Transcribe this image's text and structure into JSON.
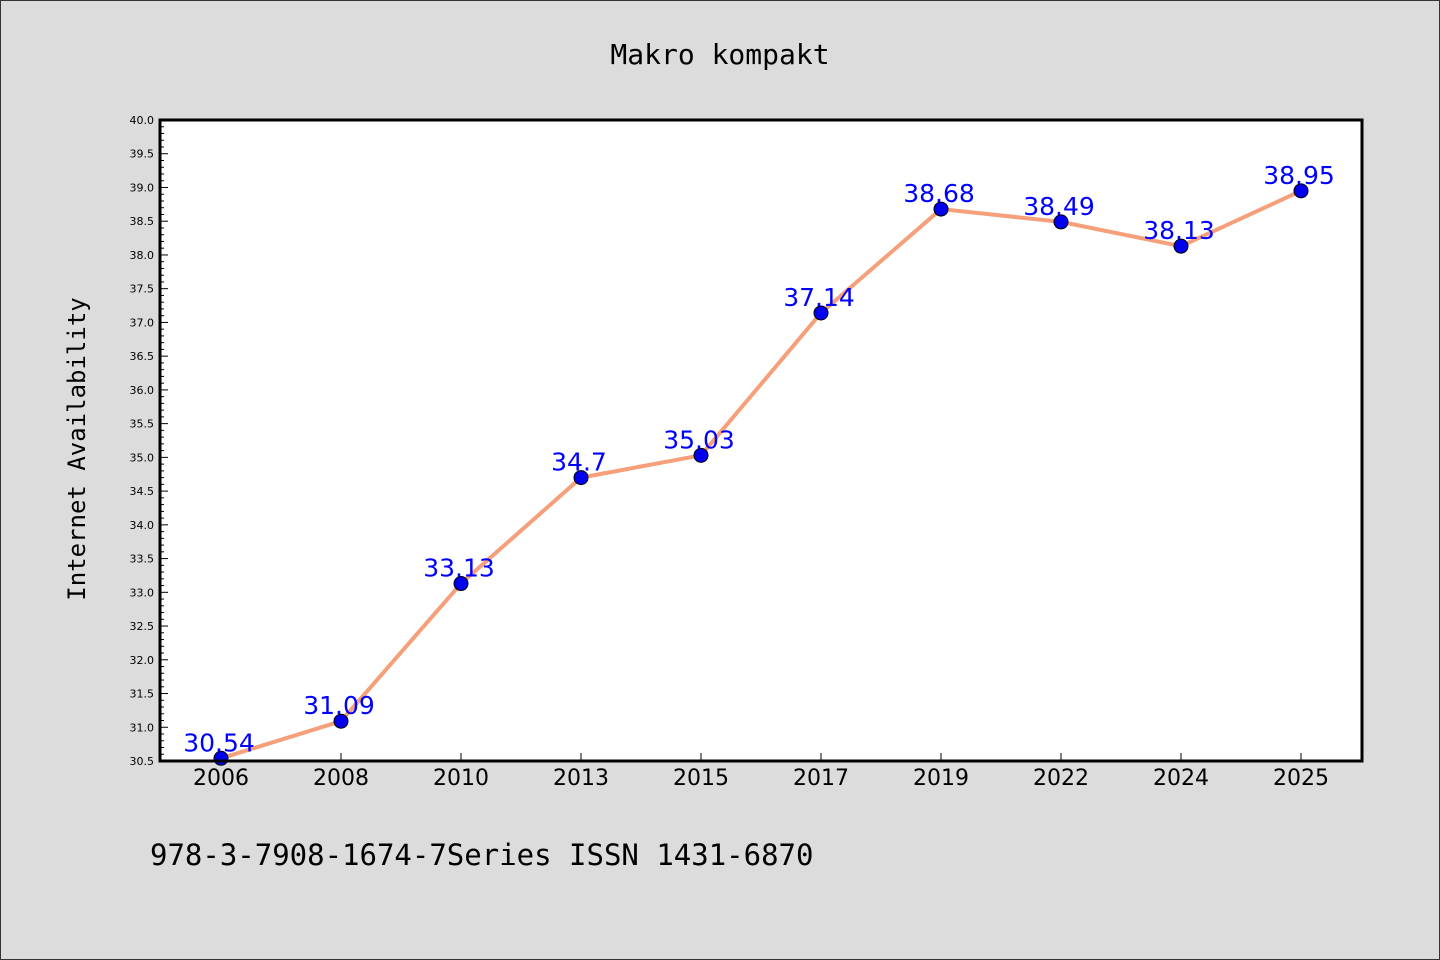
{
  "chart_data": {
    "type": "line",
    "title": "Makro kompakt",
    "xlabel": "",
    "ylabel": "Internet Availability",
    "categories": [
      "2006",
      "2008",
      "2010",
      "2013",
      "2015",
      "2017",
      "2019",
      "2022",
      "2024",
      "2025"
    ],
    "series": [
      {
        "values": [
          30.54,
          31.09,
          33.13,
          34.7,
          35.03,
          37.14,
          38.68,
          38.49,
          38.13,
          38.95
        ],
        "data_labels": [
          "30.54",
          "31.09",
          "33.13",
          "34.7",
          "35.03",
          "37.14",
          "38.68",
          "38.49",
          "38.13",
          "38.95"
        ],
        "line_color": "#f5a07a",
        "marker_color": "#0000ee",
        "label_color": "#0000ff"
      }
    ],
    "ylim": [
      30.5,
      40.0
    ],
    "y_ticks": [
      "30.5",
      "31.0",
      "31.5",
      "32.0",
      "32.5",
      "33.0",
      "33.5",
      "34.0",
      "34.5",
      "35.0",
      "35.5",
      "36.0",
      "36.5",
      "37.0",
      "37.5",
      "38.0",
      "38.5",
      "39.0",
      "39.5",
      "40.0"
    ],
    "grid": false,
    "legend": "none",
    "background": "#dcdcdc",
    "plot_background": "#ffffff"
  },
  "footer": {
    "text": "978-3-7908-1674-7Series ISSN 1431-6870"
  }
}
